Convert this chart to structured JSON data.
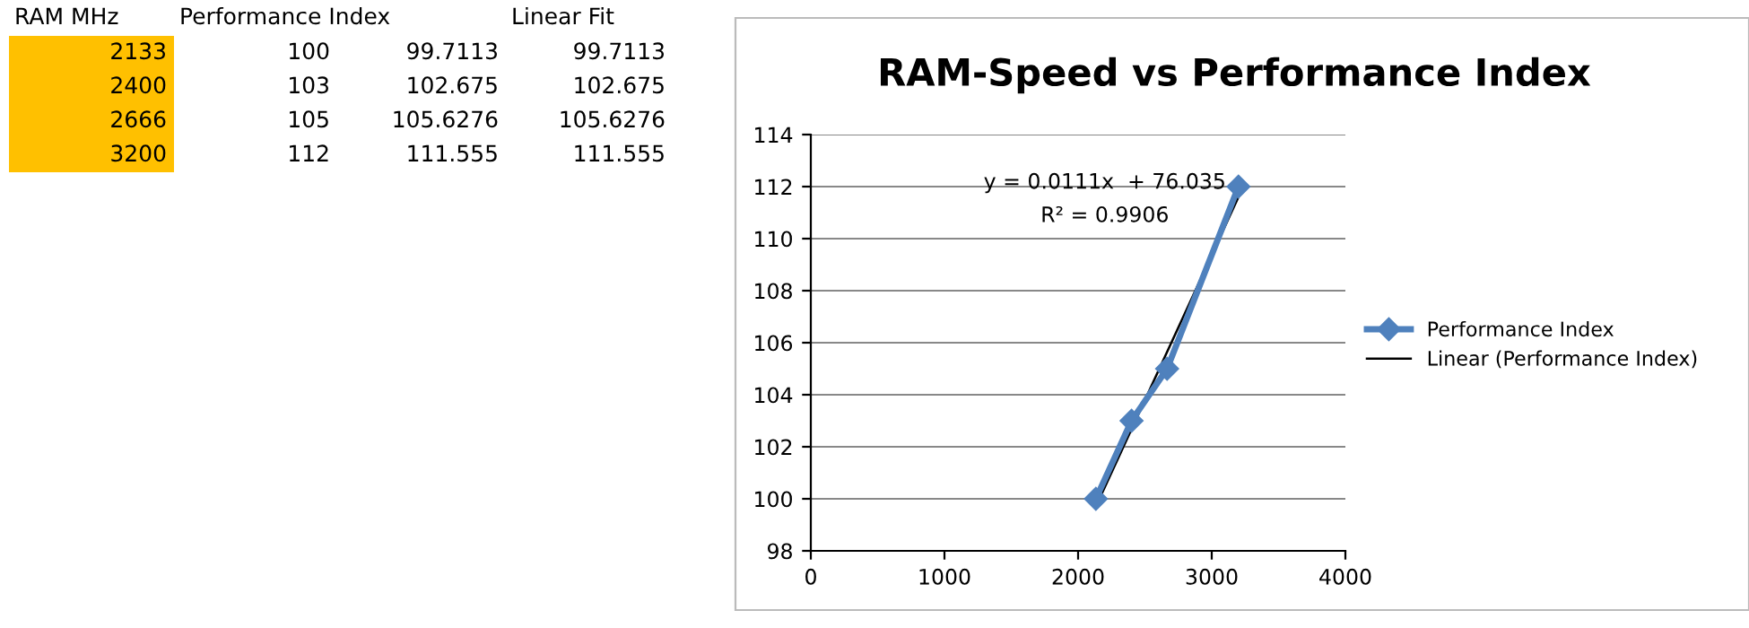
{
  "chart_data": {
    "type": "line",
    "title": "RAM-Speed vs Performance Index",
    "x": [
      2133,
      2400,
      2666,
      3200
    ],
    "series": [
      {
        "name": "Performance Index",
        "color": "#4f81bd",
        "values": [
          100,
          103,
          105,
          112
        ],
        "marker": "diamond"
      },
      {
        "name": "Linear (Performance Index)",
        "color": "#000000",
        "x": [
          2133,
          3200
        ],
        "values": [
          99.7,
          111.6
        ],
        "marker": "none"
      }
    ],
    "xlim": [
      0,
      4000
    ],
    "xticks": [
      0,
      1000,
      2000,
      3000,
      4000
    ],
    "ylim": [
      98,
      114
    ],
    "yticks": [
      98,
      100,
      102,
      104,
      106,
      108,
      110,
      112,
      114
    ],
    "grid": "y",
    "legend": "right",
    "line_style": "solid",
    "annotations": [
      "y = 0.0111x  + 76.035",
      "R² = 0.9906",
      "RAM MHz",
      "Performance Index",
      "Linear Fit",
      "2133",
      "100",
      "99.7113",
      "99.7113",
      "2400",
      "103",
      "102.675",
      "102.675",
      "2666",
      "105",
      "105.6276",
      "105.6276",
      "3200",
      "112",
      "111.555",
      "111.555"
    ]
  }
}
